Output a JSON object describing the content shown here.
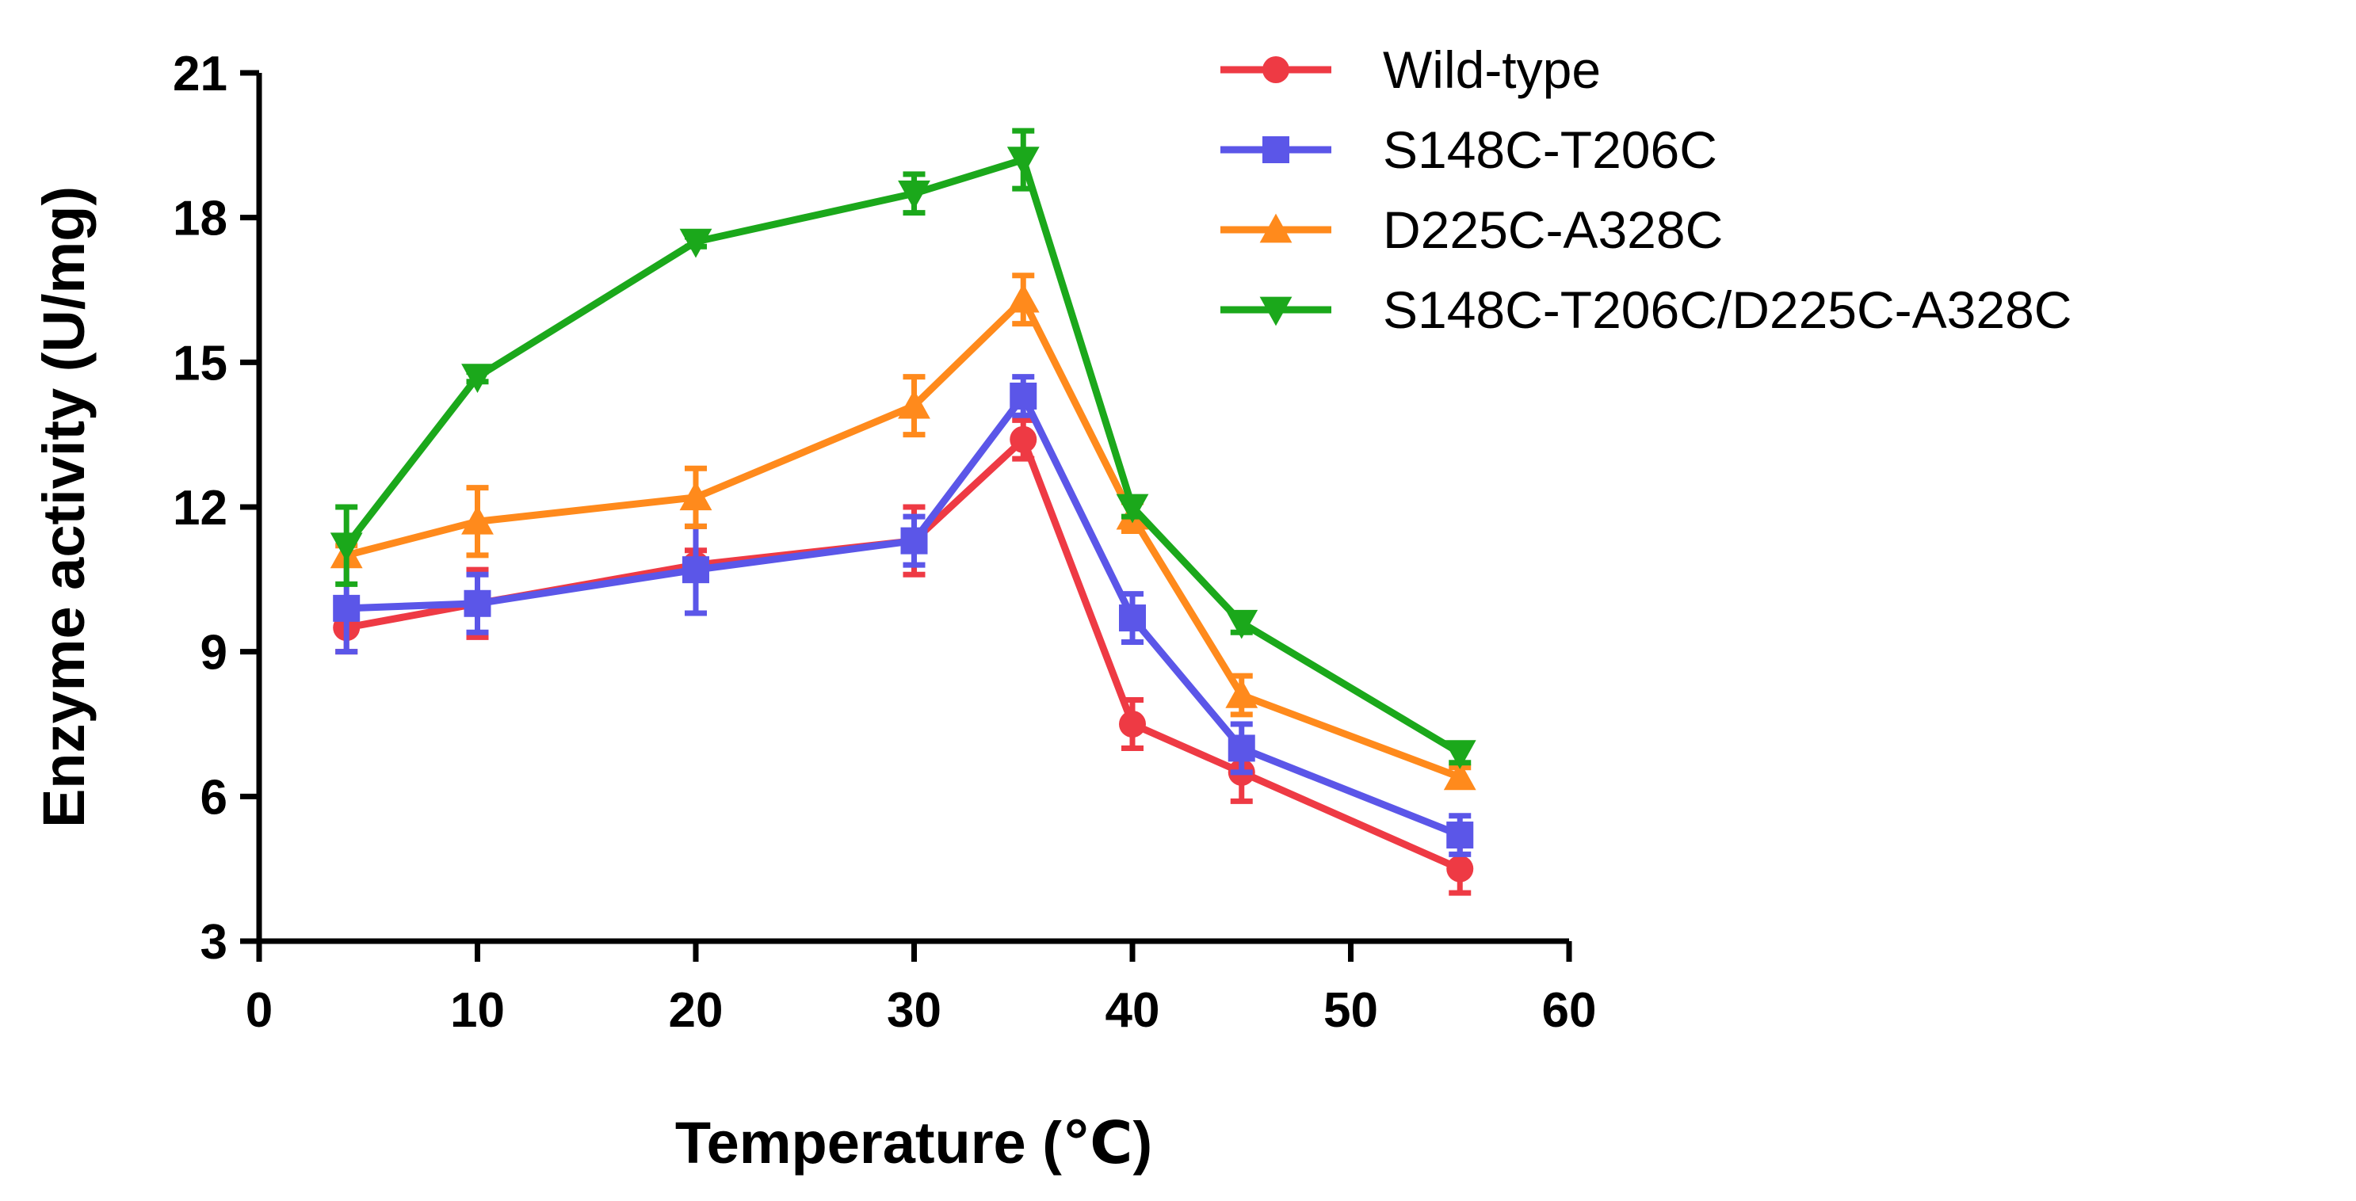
{
  "chart_data": {
    "type": "line",
    "title": "",
    "xlabel": "Temperature (℃)",
    "ylabel": "Enzyme activity (U/mg)",
    "xlim": [
      0,
      60
    ],
    "ylim": [
      3,
      21
    ],
    "xticks": [
      0,
      10,
      20,
      30,
      40,
      50,
      60
    ],
    "yticks": [
      3,
      6,
      9,
      12,
      15,
      18,
      21
    ],
    "grid": false,
    "legend_position": "top-right",
    "x": [
      4,
      10,
      20,
      30,
      35,
      40,
      45,
      55
    ],
    "series": [
      {
        "name": "Wild-type",
        "color": "#ee3a44",
        "marker": "circle",
        "values": [
          9.5,
          10.0,
          10.8,
          11.3,
          13.4,
          7.5,
          6.5,
          4.5
        ],
        "errors": [
          0.5,
          0.7,
          0.3,
          0.7,
          0.4,
          0.5,
          0.6,
          0.5
        ]
      },
      {
        "name": "S148C-T206C",
        "color": "#5b56e8",
        "marker": "square",
        "values": [
          9.9,
          10.0,
          10.7,
          11.3,
          14.3,
          9.7,
          7.0,
          5.2
        ],
        "errors": [
          0.9,
          0.6,
          0.9,
          0.5,
          0.4,
          0.5,
          0.5,
          0.4
        ]
      },
      {
        "name": "D225C-A328C",
        "color": "#ff8a1c",
        "marker": "triangle-up",
        "values": [
          11.0,
          11.7,
          12.2,
          14.1,
          16.3,
          11.8,
          8.1,
          6.4
        ],
        "errors": [
          0.2,
          0.7,
          0.6,
          0.6,
          0.5,
          0.3,
          0.4,
          0.2
        ]
      },
      {
        "name": "S148C-T206C/D225C-A328C",
        "color": "#1ba81b",
        "marker": "triangle-down",
        "values": [
          11.2,
          14.7,
          17.5,
          18.5,
          19.2,
          12.0,
          9.6,
          6.9
        ],
        "errors": [
          0.8,
          0.1,
          0.1,
          0.4,
          0.6,
          0.2,
          0.2,
          0.2
        ]
      }
    ]
  }
}
